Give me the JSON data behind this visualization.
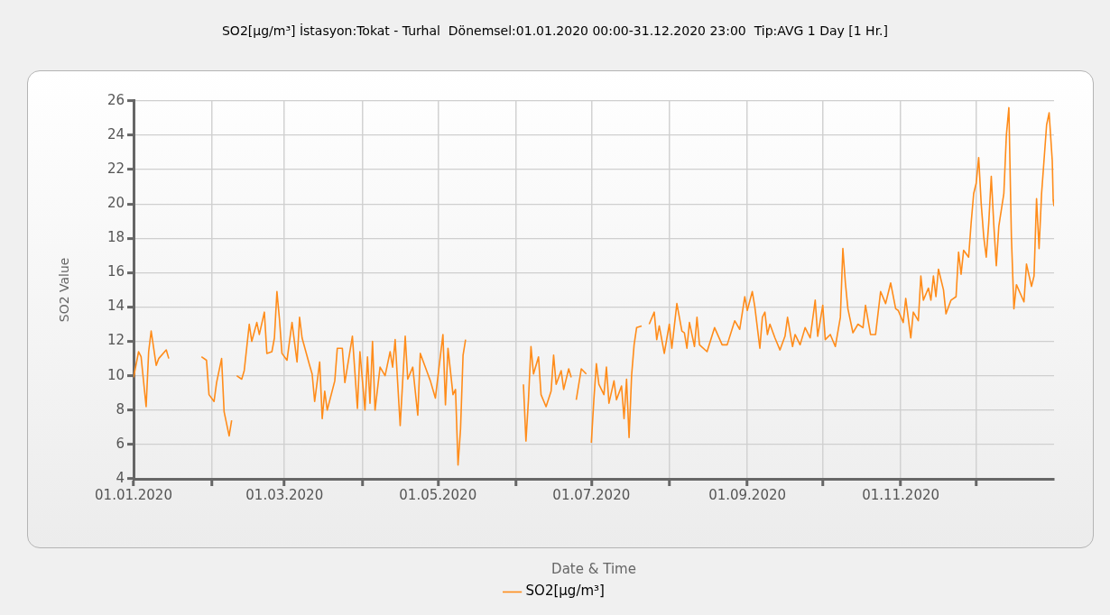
{
  "chart_data": {
    "type": "line",
    "title": "SO2[µg/m³] İstasyon:Tokat - Turhal  Dönemsel:01.01.2020 00:00-31.12.2020 23:00  Tip:AVG 1 Day [1 Hr.]",
    "xlabel": "Date & Time",
    "ylabel": "SO2 Value",
    "legend": "bottom",
    "grid": true,
    "xlim": [
      "2020-01-01",
      "2020-12-31T23:00"
    ],
    "xticks": [
      {
        "value": "2020-01-01",
        "label": "01.01.2020"
      },
      {
        "value": "2020-02-01",
        "label": null
      },
      {
        "value": "2020-03-01",
        "label": "01.03.2020"
      },
      {
        "value": "2020-04-01",
        "label": null
      },
      {
        "value": "2020-05-01",
        "label": "01.05.2020"
      },
      {
        "value": "2020-06-01",
        "label": null
      },
      {
        "value": "2020-07-01",
        "label": "01.07.2020"
      },
      {
        "value": "2020-08-01",
        "label": null
      },
      {
        "value": "2020-09-01",
        "label": "01.09.2020"
      },
      {
        "value": "2020-10-01",
        "label": null
      },
      {
        "value": "2020-11-01",
        "label": "01.11.2020"
      },
      {
        "value": "2020-12-01",
        "label": null
      }
    ],
    "ylim": [
      4,
      26
    ],
    "yticks": [
      4,
      6,
      8,
      10,
      12,
      14,
      16,
      18,
      20,
      22,
      24,
      26
    ],
    "x": [
      "2020-01-01",
      "2020-01-03",
      "2020-01-04",
      "2020-01-06",
      "2020-01-07",
      "2020-01-08",
      "2020-01-10",
      "2020-01-11",
      "2020-01-14",
      "2020-01-15",
      "2020-01-20",
      "2020-01-28",
      "2020-01-30",
      "2020-01-31",
      "2020-02-02",
      "2020-02-03",
      "2020-02-05",
      "2020-02-06",
      "2020-02-08",
      "2020-02-09",
      "2020-02-10",
      "2020-02-11",
      "2020-02-13",
      "2020-02-14",
      "2020-02-16",
      "2020-02-17",
      "2020-02-19",
      "2020-02-20",
      "2020-02-22",
      "2020-02-23",
      "2020-02-25",
      "2020-02-26",
      "2020-02-27",
      "2020-02-28",
      "2020-02-29",
      "2020-03-02",
      "2020-03-04",
      "2020-03-06",
      "2020-03-07",
      "2020-03-08",
      "2020-03-11",
      "2020-03-12",
      "2020-03-13",
      "2020-03-15",
      "2020-03-16",
      "2020-03-17",
      "2020-03-18",
      "2020-03-21",
      "2020-03-22",
      "2020-03-24",
      "2020-03-25",
      "2020-03-28",
      "2020-03-30",
      "2020-03-31",
      "2020-04-02",
      "2020-04-03",
      "2020-04-04",
      "2020-04-05",
      "2020-04-06",
      "2020-04-08",
      "2020-04-10",
      "2020-04-12",
      "2020-04-13",
      "2020-04-14",
      "2020-04-16",
      "2020-04-18",
      "2020-04-19",
      "2020-04-21",
      "2020-04-23",
      "2020-04-24",
      "2020-04-27",
      "2020-04-28",
      "2020-04-30",
      "2020-05-03",
      "2020-05-04",
      "2020-05-05",
      "2020-05-07",
      "2020-05-08",
      "2020-05-09",
      "2020-05-10",
      "2020-05-11",
      "2020-05-12",
      "2020-05-20",
      "2020-06-04",
      "2020-06-05",
      "2020-06-06",
      "2020-06-07",
      "2020-06-08",
      "2020-06-10",
      "2020-06-11",
      "2020-06-13",
      "2020-06-15",
      "2020-06-16",
      "2020-06-17",
      "2020-06-19",
      "2020-06-20",
      "2020-06-22",
      "2020-06-23",
      "2020-06-24",
      "2020-06-25",
      "2020-06-27",
      "2020-06-29",
      "2020-06-30",
      "2020-07-01",
      "2020-07-02",
      "2020-07-03",
      "2020-07-04",
      "2020-07-06",
      "2020-07-07",
      "2020-07-08",
      "2020-07-10",
      "2020-07-11",
      "2020-07-13",
      "2020-07-14",
      "2020-07-15",
      "2020-07-16",
      "2020-07-17",
      "2020-07-18",
      "2020-07-19",
      "2020-07-21",
      "2020-07-22",
      "2020-07-24",
      "2020-07-26",
      "2020-07-27",
      "2020-07-28",
      "2020-07-30",
      "2020-08-01",
      "2020-08-02",
      "2020-08-04",
      "2020-08-06",
      "2020-08-07",
      "2020-08-08",
      "2020-08-09",
      "2020-08-11",
      "2020-08-12",
      "2020-08-13",
      "2020-08-16",
      "2020-08-19",
      "2020-08-22",
      "2020-08-24",
      "2020-08-27",
      "2020-08-29",
      "2020-08-31",
      "2020-09-01",
      "2020-09-03",
      "2020-09-04",
      "2020-09-06",
      "2020-09-07",
      "2020-09-08",
      "2020-09-09",
      "2020-09-10",
      "2020-09-12",
      "2020-09-14",
      "2020-09-16",
      "2020-09-17",
      "2020-09-19",
      "2020-09-20",
      "2020-09-22",
      "2020-09-24",
      "2020-09-26",
      "2020-09-28",
      "2020-09-29",
      "2020-10-01",
      "2020-10-02",
      "2020-10-04",
      "2020-10-06",
      "2020-10-08",
      "2020-10-09",
      "2020-10-10",
      "2020-10-11",
      "2020-10-13",
      "2020-10-15",
      "2020-10-17",
      "2020-10-18",
      "2020-10-20",
      "2020-10-22",
      "2020-10-24",
      "2020-10-26",
      "2020-10-28",
      "2020-10-30",
      "2020-10-31",
      "2020-11-02",
      "2020-11-03",
      "2020-11-05",
      "2020-11-06",
      "2020-11-08",
      "2020-11-09",
      "2020-11-10",
      "2020-11-12",
      "2020-11-13",
      "2020-11-14",
      "2020-11-15",
      "2020-11-16",
      "2020-11-18",
      "2020-11-19",
      "2020-11-21",
      "2020-11-23",
      "2020-11-24",
      "2020-11-25",
      "2020-11-26",
      "2020-11-28",
      "2020-11-29",
      "2020-11-30",
      "2020-12-01",
      "2020-12-02",
      "2020-12-03",
      "2020-12-04",
      "2020-12-05",
      "2020-12-06",
      "2020-12-07",
      "2020-12-08",
      "2020-12-09",
      "2020-12-10",
      "2020-12-12",
      "2020-12-13",
      "2020-12-14",
      "2020-12-15",
      "2020-12-16",
      "2020-12-17",
      "2020-12-20",
      "2020-12-21",
      "2020-12-23",
      "2020-12-24",
      "2020-12-25",
      "2020-12-26",
      "2020-12-27",
      "2020-12-29",
      "2020-12-30",
      "2020-12-31T06:00",
      "2020-12-31T15:00",
      "2020-12-31T22:00"
    ],
    "series": [
      {
        "name": "SO2[µg/m³]",
        "color": "#ff8c1a",
        "values": [
          9.9,
          11.4,
          11.1,
          8.2,
          11.4,
          12.6,
          10.6,
          11.0,
          11.5,
          11.0,
          null,
          11.1,
          10.9,
          8.9,
          8.5,
          9.6,
          11.0,
          7.9,
          6.5,
          7.4,
          null,
          10.0,
          9.8,
          10.3,
          13.0,
          12.0,
          13.1,
          12.4,
          13.7,
          11.3,
          11.4,
          12.2,
          14.9,
          13.3,
          11.3,
          10.9,
          13.1,
          10.8,
          13.4,
          12.2,
          10.6,
          10.1,
          8.5,
          10.8,
          7.5,
          9.1,
          8.0,
          9.7,
          11.6,
          11.6,
          9.6,
          12.3,
          8.1,
          11.4,
          8.0,
          11.1,
          8.4,
          12.0,
          8.0,
          10.5,
          10.0,
          11.4,
          10.5,
          12.1,
          7.1,
          12.3,
          9.8,
          10.5,
          7.7,
          11.3,
          10.1,
          9.7,
          8.7,
          12.4,
          8.3,
          11.6,
          8.9,
          9.2,
          4.8,
          6.9,
          11.2,
          12.1,
          null,
          9.5,
          6.2,
          8.6,
          11.7,
          10.1,
          11.1,
          8.9,
          8.2,
          9.1,
          11.2,
          9.5,
          10.3,
          9.2,
          10.4,
          9.9,
          null,
          8.6,
          10.4,
          10.1,
          null,
          6.1,
          8.6,
          10.7,
          9.5,
          8.9,
          10.5,
          8.4,
          9.7,
          8.6,
          9.4,
          7.5,
          9.8,
          6.4,
          10.0,
          11.8,
          12.8,
          12.9,
          null,
          13.0,
          13.7,
          12.1,
          12.9,
          11.3,
          13.0,
          11.6,
          14.2,
          12.6,
          12.5,
          11.6,
          13.1,
          11.7,
          13.4,
          11.8,
          11.4,
          12.8,
          11.8,
          11.8,
          13.2,
          12.7,
          14.6,
          13.8,
          14.9,
          14.0,
          11.6,
          13.4,
          13.7,
          12.4,
          13.0,
          12.2,
          11.5,
          12.3,
          13.4,
          11.7,
          12.4,
          11.8,
          12.8,
          12.2,
          14.4,
          12.3,
          14.1,
          12.1,
          12.4,
          11.7,
          13.4,
          17.4,
          15.4,
          13.9,
          12.5,
          13.0,
          12.8,
          14.1,
          12.4,
          12.4,
          14.9,
          14.2,
          15.4,
          13.9,
          13.8,
          13.1,
          14.5,
          12.2,
          13.7,
          13.2,
          15.8,
          14.4,
          15.1,
          14.4,
          15.8,
          14.6,
          16.2,
          15.0,
          13.6,
          14.4,
          14.6,
          17.2,
          15.9,
          17.3,
          16.9,
          18.9,
          20.6,
          21.2,
          22.7,
          20.0,
          18.1,
          16.9,
          18.9,
          21.6,
          18.8,
          16.4,
          18.7,
          20.6,
          24.0,
          25.6,
          18.1,
          13.9,
          15.3,
          14.3,
          16.5,
          15.2,
          15.8,
          20.3,
          17.4,
          20.6,
          24.6,
          25.3,
          22.5,
          20.2,
          19.9
        ]
      }
    ]
  }
}
